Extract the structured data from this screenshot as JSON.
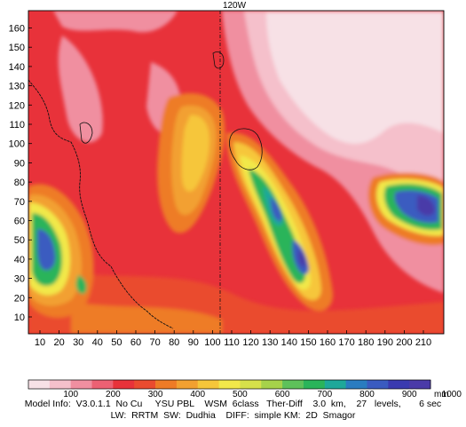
{
  "map": {
    "top_label": "120W",
    "x_ticks": [
      "10",
      "20",
      "30",
      "40",
      "50",
      "60",
      "70",
      "80",
      "90",
      "100",
      "110",
      "120",
      "130",
      "140",
      "150",
      "160",
      "170",
      "180",
      "190",
      "200",
      "210"
    ],
    "y_ticks": [
      "10",
      "20",
      "30",
      "40",
      "50",
      "60",
      "70",
      "80",
      "90",
      "100",
      "110",
      "120",
      "130",
      "140",
      "150",
      "160"
    ],
    "field_colors": {
      "paper": "#ffffff",
      "very_light_pink": "#f7e1e6",
      "light_pink": "#f5c0cb",
      "pink": "#f08fa0",
      "pink_red": "#ec6173",
      "red": "#e8323a",
      "red_orange": "#ea4b2f",
      "orange": "#ee7b26",
      "orange_light": "#f2a030",
      "yellow_orange": "#f6c63a",
      "yellow": "#f2e84a",
      "green": "#2ab45a",
      "teal": "#1ea89a",
      "blue": "#3a5bc0",
      "purple": "#4a3aa8"
    }
  },
  "legend": {
    "labels": [
      "100",
      "200",
      "300",
      "400",
      "500",
      "600",
      "700",
      "800",
      "900",
      "1000"
    ],
    "unit": "mm",
    "colors": [
      "#f7e1e6",
      "#f5c0cb",
      "#f08fa0",
      "#ec6173",
      "#e8323a",
      "#ea4b2f",
      "#ee7b26",
      "#f2a030",
      "#f6c63a",
      "#f2e84a",
      "#d6e04a",
      "#a6d24a",
      "#5ec15a",
      "#2ab45a",
      "#1ea89a",
      "#2a7cc0",
      "#3a5bc0",
      "#3a3ab0",
      "#4a3aa8"
    ]
  },
  "model_info": {
    "line1": "Model Info:  V3.0.1.1  No Cu     YSU PBL    WSM  6class   Ther-Diff    3.0  km,    27   levels,       6 sec",
    "line2": "LW:  RRTM  SW:  Dudhia    DIFF:  simple KM:  2D  Smagor"
  }
}
